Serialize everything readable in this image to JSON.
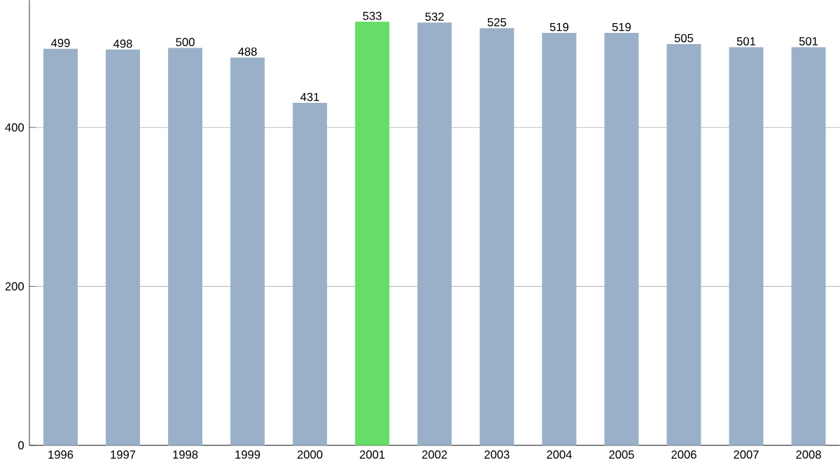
{
  "chart_data": {
    "type": "bar",
    "categories": [
      "1996",
      "1997",
      "1998",
      "1999",
      "2000",
      "2001",
      "2002",
      "2003",
      "2004",
      "2005",
      "2006",
      "2007",
      "2008"
    ],
    "values": [
      499,
      498,
      500,
      488,
      431,
      533,
      532,
      525,
      519,
      519,
      505,
      501,
      501
    ],
    "colors": [
      "#9ab0c8",
      "#9ab0c8",
      "#9ab0c8",
      "#9ab0c8",
      "#9ab0c8",
      "#66dd66",
      "#9ab0c8",
      "#9ab0c8",
      "#9ab0c8",
      "#9ab0c8",
      "#9ab0c8",
      "#9ab0c8",
      "#9ab0c8"
    ],
    "ylim": [
      0,
      560
    ],
    "yticks": [
      0,
      200,
      400
    ],
    "grid": "y",
    "data_labels": true
  }
}
